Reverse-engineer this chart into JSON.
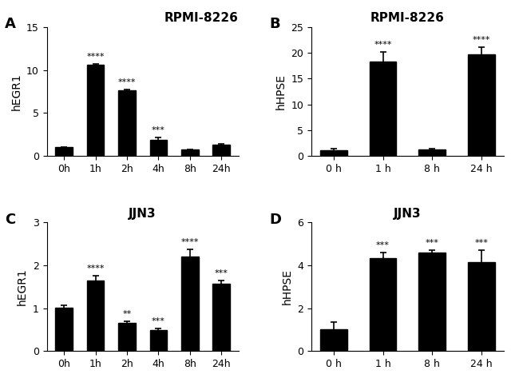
{
  "panel_A": {
    "title": "RPMI-8226",
    "title_loc": "right",
    "ylabel": "hEGR1",
    "xlabel_labels": [
      "0h",
      "1h",
      "2h",
      "4h",
      "8h",
      "24h"
    ],
    "values": [
      1.0,
      10.6,
      7.6,
      1.9,
      0.7,
      1.3
    ],
    "errors": [
      0.05,
      0.12,
      0.1,
      0.2,
      0.05,
      0.12
    ],
    "significance": [
      "",
      "****",
      "****",
      "***",
      "",
      ""
    ],
    "ylim": [
      0,
      15
    ],
    "yticks": [
      0,
      5,
      10,
      15
    ]
  },
  "panel_B": {
    "title": "RPMI-8226",
    "title_loc": "center",
    "ylabel": "hHPSE",
    "xlabel_labels": [
      "0 h",
      "1 h",
      "8 h",
      "24 h"
    ],
    "values": [
      1.1,
      18.4,
      1.2,
      19.7
    ],
    "errors": [
      0.3,
      1.8,
      0.15,
      1.5
    ],
    "significance": [
      "",
      "****",
      "",
      "****"
    ],
    "ylim": [
      0,
      25
    ],
    "yticks": [
      0,
      5,
      10,
      15,
      20,
      25
    ]
  },
  "panel_C": {
    "title": "JJN3",
    "title_loc": "center",
    "ylabel": "hEGR1",
    "xlabel_labels": [
      "0h",
      "1h",
      "2h",
      "4h",
      "8h",
      "24h"
    ],
    "values": [
      1.02,
      1.65,
      0.65,
      0.48,
      2.2,
      1.57
    ],
    "errors": [
      0.04,
      0.1,
      0.05,
      0.04,
      0.18,
      0.07
    ],
    "significance": [
      "",
      "****",
      "**",
      "***",
      "****",
      "***"
    ],
    "ylim": [
      0,
      3
    ],
    "yticks": [
      0,
      1,
      2,
      3
    ]
  },
  "panel_D": {
    "title": "JJN3",
    "title_loc": "center",
    "ylabel": "hHPSE",
    "xlabel_labels": [
      "0 h",
      "1 h",
      "8 h",
      "24 h"
    ],
    "values": [
      1.0,
      4.35,
      4.6,
      4.15
    ],
    "errors": [
      0.35,
      0.25,
      0.1,
      0.55
    ],
    "significance": [
      "",
      "***",
      "***",
      "***"
    ],
    "ylim": [
      0,
      6
    ],
    "yticks": [
      0,
      2,
      4,
      6
    ]
  },
  "bar_color": "#000000",
  "bar_width": 0.55,
  "panel_labels": [
    "A",
    "B",
    "C",
    "D"
  ],
  "sig_fontsize": 8,
  "title_fontsize": 11,
  "label_fontsize": 10,
  "tick_fontsize": 9
}
